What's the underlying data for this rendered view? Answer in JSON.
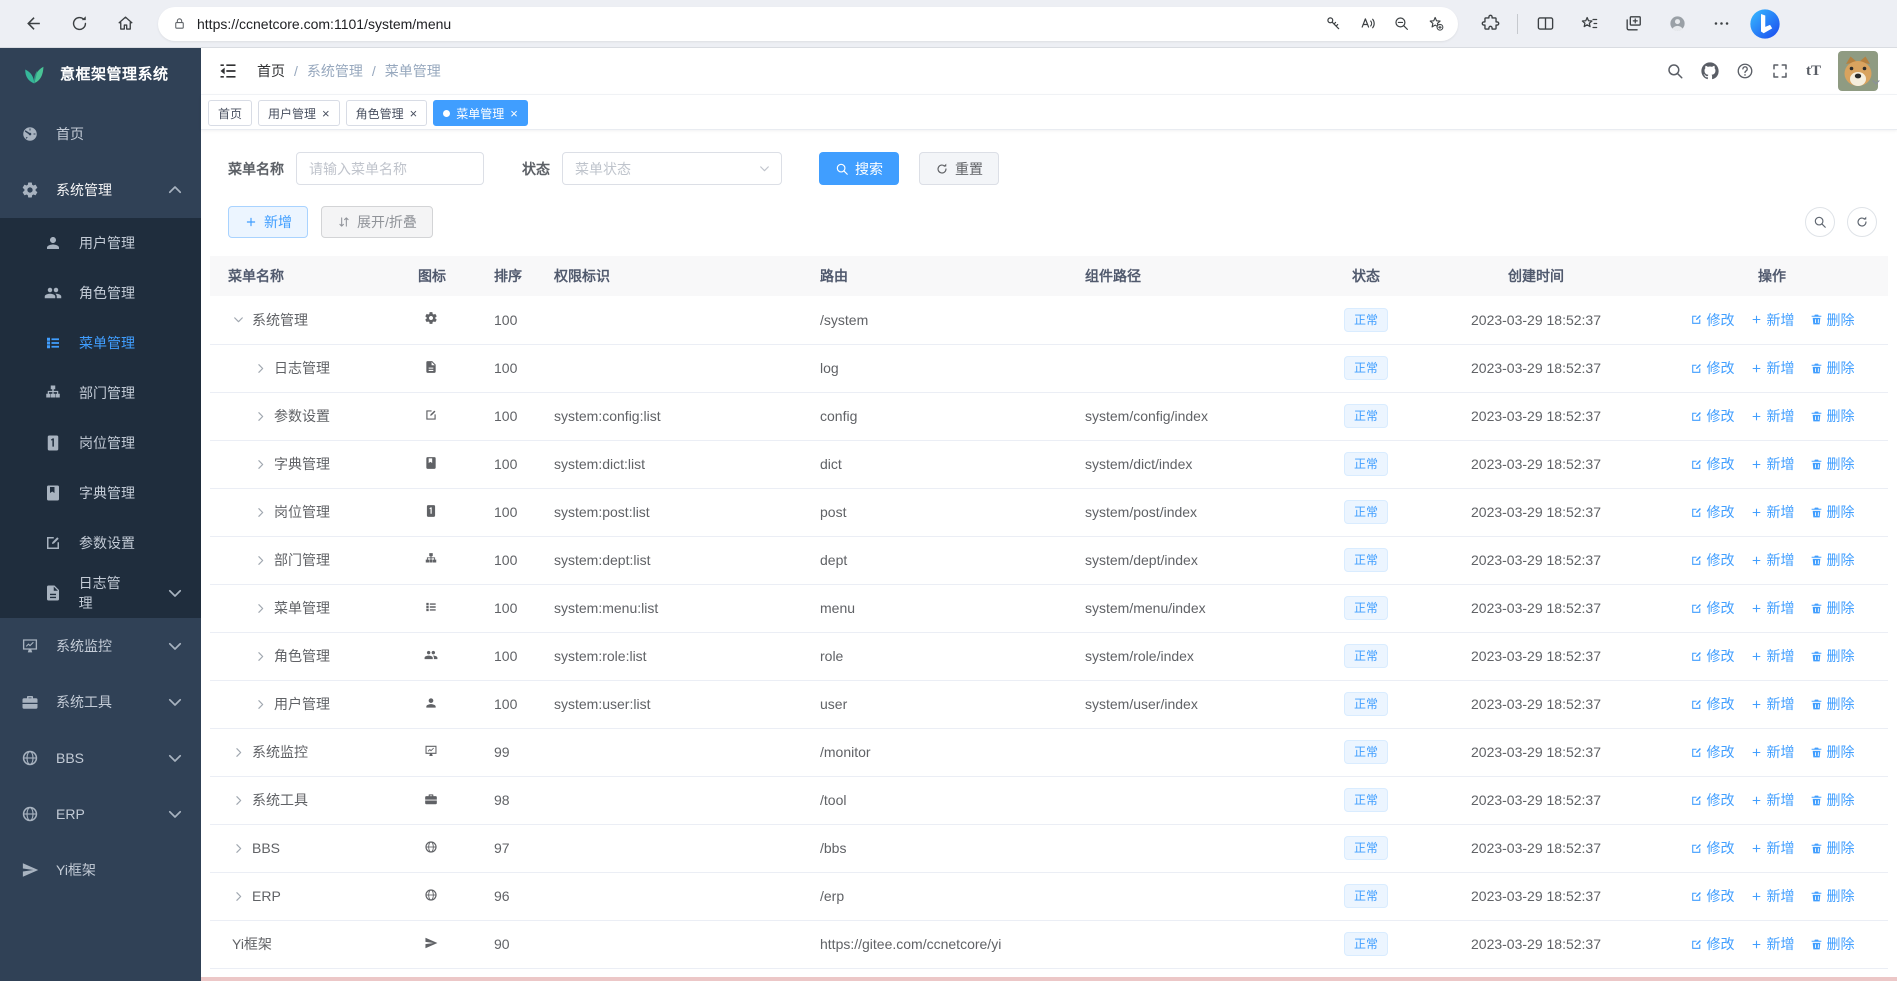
{
  "browser": {
    "url": "https://ccnetcore.com:1101/system/menu",
    "nav_buttons": [
      {
        "key": "back",
        "icon": "back-arrow"
      },
      {
        "key": "reload",
        "icon": "reload"
      },
      {
        "key": "home",
        "icon": "home"
      }
    ],
    "pill_buttons": [
      {
        "key": "password",
        "icon": "key"
      },
      {
        "key": "read-aloud",
        "icon": "read-aloud"
      },
      {
        "key": "zoom-out",
        "icon": "zoom-out"
      },
      {
        "key": "add-favorite",
        "icon": "star-plus"
      }
    ],
    "action_buttons": [
      {
        "key": "extensions",
        "icon": "extensions"
      },
      {
        "key": "split-screen",
        "icon": "split-screen",
        "divider_before": true
      },
      {
        "key": "favorites",
        "icon": "favorites-star"
      },
      {
        "key": "collections",
        "icon": "collections"
      },
      {
        "key": "profile",
        "icon": "profile"
      },
      {
        "key": "more",
        "icon": "dots"
      }
    ],
    "bing_button": {
      "key": "bing-chat",
      "icon": "bing"
    }
  },
  "sidebar": {
    "title": "意框架管理系统",
    "logo_icon": "leaf",
    "items": [
      {
        "key": "home",
        "label": "首页",
        "icon": "dashboard",
        "level": 0
      },
      {
        "key": "system",
        "label": "系统管理",
        "icon": "gear",
        "level": 0,
        "chevron": "up",
        "open": true
      },
      {
        "key": "user",
        "label": "用户管理",
        "icon": "user",
        "level": 1
      },
      {
        "key": "role",
        "label": "角色管理",
        "icon": "users",
        "level": 1
      },
      {
        "key": "menu",
        "label": "菜单管理",
        "icon": "menu-list",
        "level": 1,
        "active": true
      },
      {
        "key": "dept",
        "label": "部门管理",
        "icon": "org-tree",
        "level": 1
      },
      {
        "key": "post",
        "label": "岗位管理",
        "icon": "post-badge",
        "level": 1
      },
      {
        "key": "dict",
        "label": "字典管理",
        "icon": "dict-book",
        "level": 1
      },
      {
        "key": "config",
        "label": "参数设置",
        "icon": "edit-square",
        "level": 1
      },
      {
        "key": "log",
        "label": "日志管理",
        "icon": "log-doc",
        "level": 1,
        "chevron": "down"
      },
      {
        "key": "monitor",
        "label": "系统监控",
        "icon": "monitor",
        "level": 0,
        "chevron": "down"
      },
      {
        "key": "tool",
        "label": "系统工具",
        "icon": "briefcase",
        "level": 0,
        "chevron": "down"
      },
      {
        "key": "bbs",
        "label": "BBS",
        "icon": "globe",
        "level": 0,
        "chevron": "down"
      },
      {
        "key": "erp",
        "label": "ERP",
        "icon": "globe",
        "level": 0,
        "chevron": "down"
      },
      {
        "key": "yi",
        "label": "Yi框架",
        "icon": "plane",
        "level": 0
      }
    ]
  },
  "header": {
    "breadcrumb": [
      "首页",
      "系统管理",
      "菜单管理"
    ],
    "actions": [
      {
        "key": "search",
        "icon": "search"
      },
      {
        "key": "github",
        "icon": "github"
      },
      {
        "key": "help",
        "icon": "question"
      },
      {
        "key": "fullscreen",
        "icon": "fullscreen"
      },
      {
        "key": "font-size",
        "icon": "font-size"
      }
    ]
  },
  "tabs": [
    {
      "key": "home",
      "label": "首页"
    },
    {
      "key": "users",
      "label": "用户管理",
      "closable": true
    },
    {
      "key": "roles",
      "label": "角色管理",
      "closable": true
    },
    {
      "key": "menus",
      "label": "菜单管理",
      "closable": true,
      "active": true
    }
  ],
  "filters": {
    "name_label": "菜单名称",
    "name_placeholder": "请输入菜单名称",
    "name_value": "",
    "status_label": "状态",
    "status_placeholder": "菜单状态",
    "search_label": "搜索",
    "reset_label": "重置"
  },
  "toolbar": {
    "add_label": "新增",
    "fold_label": "展开/折叠",
    "right_buttons": [
      {
        "key": "toggle-search",
        "icon": "search"
      },
      {
        "key": "refresh",
        "icon": "refresh"
      }
    ]
  },
  "table": {
    "columns": [
      "菜单名称",
      "图标",
      "排序",
      "权限标识",
      "路由",
      "组件路径",
      "状态",
      "创建时间",
      "操作"
    ],
    "ops": [
      {
        "key": "edit",
        "label": "修改",
        "icon": "edit-op"
      },
      {
        "key": "add",
        "label": "新增",
        "icon": "plus"
      },
      {
        "key": "delete",
        "label": "删除",
        "icon": "trash"
      }
    ],
    "rows": [
      {
        "name": "系统管理",
        "icon": "gear",
        "level": 0,
        "expand": "open",
        "sort": "100",
        "perms": "",
        "route": "/system",
        "component": "",
        "status": "正常",
        "created": "2023-03-29 18:52:37"
      },
      {
        "name": "日志管理",
        "icon": "log-doc",
        "level": 1,
        "expand": "closed",
        "sort": "100",
        "perms": "",
        "route": "log",
        "component": "",
        "status": "正常",
        "created": "2023-03-29 18:52:37"
      },
      {
        "name": "参数设置",
        "icon": "edit-square",
        "level": 1,
        "expand": "closed",
        "sort": "100",
        "perms": "system:config:list",
        "route": "config",
        "component": "system/config/index",
        "status": "正常",
        "created": "2023-03-29 18:52:37"
      },
      {
        "name": "字典管理",
        "icon": "dict-book",
        "level": 1,
        "expand": "closed",
        "sort": "100",
        "perms": "system:dict:list",
        "route": "dict",
        "component": "system/dict/index",
        "status": "正常",
        "created": "2023-03-29 18:52:37"
      },
      {
        "name": "岗位管理",
        "icon": "post-badge",
        "level": 1,
        "expand": "closed",
        "sort": "100",
        "perms": "system:post:list",
        "route": "post",
        "component": "system/post/index",
        "status": "正常",
        "created": "2023-03-29 18:52:37"
      },
      {
        "name": "部门管理",
        "icon": "org-tree",
        "level": 1,
        "expand": "closed",
        "sort": "100",
        "perms": "system:dept:list",
        "route": "dept",
        "component": "system/dept/index",
        "status": "正常",
        "created": "2023-03-29 18:52:37"
      },
      {
        "name": "菜单管理",
        "icon": "menu-list",
        "level": 1,
        "expand": "closed",
        "sort": "100",
        "perms": "system:menu:list",
        "route": "menu",
        "component": "system/menu/index",
        "status": "正常",
        "created": "2023-03-29 18:52:37"
      },
      {
        "name": "角色管理",
        "icon": "users",
        "level": 1,
        "expand": "closed",
        "sort": "100",
        "perms": "system:role:list",
        "route": "role",
        "component": "system/role/index",
        "status": "正常",
        "created": "2023-03-29 18:52:37"
      },
      {
        "name": "用户管理",
        "icon": "user",
        "level": 1,
        "expand": "closed",
        "sort": "100",
        "perms": "system:user:list",
        "route": "user",
        "component": "system/user/index",
        "status": "正常",
        "created": "2023-03-29 18:52:37"
      },
      {
        "name": "系统监控",
        "icon": "monitor",
        "level": 0,
        "expand": "closed",
        "sort": "99",
        "perms": "",
        "route": "/monitor",
        "component": "",
        "status": "正常",
        "created": "2023-03-29 18:52:37"
      },
      {
        "name": "系统工具",
        "icon": "briefcase",
        "level": 0,
        "expand": "closed",
        "sort": "98",
        "perms": "",
        "route": "/tool",
        "component": "",
        "status": "正常",
        "created": "2023-03-29 18:52:37"
      },
      {
        "name": "BBS",
        "icon": "globe",
        "level": 0,
        "expand": "closed",
        "sort": "97",
        "perms": "",
        "route": "/bbs",
        "component": "",
        "status": "正常",
        "created": "2023-03-29 18:52:37"
      },
      {
        "name": "ERP",
        "icon": "globe",
        "level": 0,
        "expand": "closed",
        "sort": "96",
        "perms": "",
        "route": "/erp",
        "component": "",
        "status": "正常",
        "created": "2023-03-29 18:52:37"
      },
      {
        "name": "Yi框架",
        "icon": "plane",
        "level": 0,
        "expand": "none",
        "sort": "90",
        "perms": "",
        "route": "https://gitee.com/ccnetcore/yi",
        "component": "",
        "status": "正常",
        "created": "2023-03-29 18:52:37"
      }
    ]
  }
}
